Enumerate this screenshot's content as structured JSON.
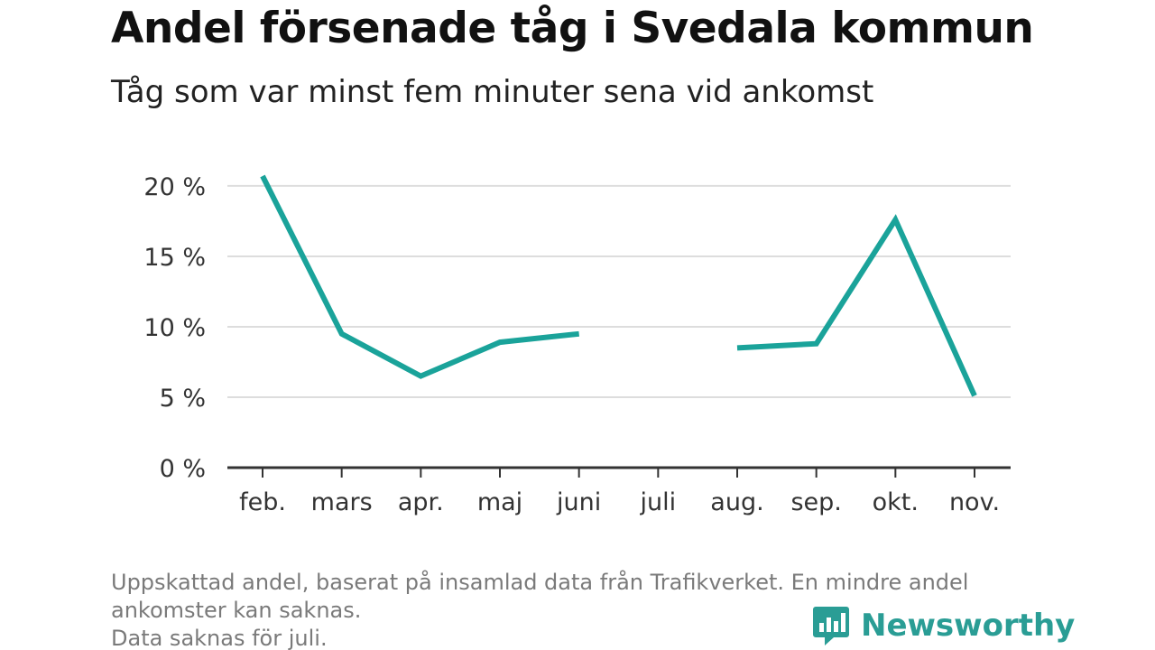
{
  "header": {
    "title": "Andel försenade tåg i Svedala kommun",
    "subtitle": "Tåg som var minst fem minuter sena vid ankomst"
  },
  "chart_data": {
    "type": "line",
    "categories": [
      "feb.",
      "mars",
      "apr.",
      "maj",
      "juni",
      "juli",
      "aug.",
      "sep.",
      "okt.",
      "nov."
    ],
    "series": [
      {
        "values": [
          20.7,
          9.5,
          6.5,
          8.9,
          9.5,
          null,
          8.5,
          8.8,
          17.6,
          5.1
        ]
      }
    ],
    "y_ticks": [
      {
        "value": 0,
        "label": "0 %"
      },
      {
        "value": 5,
        "label": "5 %"
      },
      {
        "value": 10,
        "label": "10 %"
      },
      {
        "value": 15,
        "label": "15 %"
      },
      {
        "value": 20,
        "label": "20 %"
      }
    ],
    "ylim": [
      0,
      20.7
    ],
    "grid": "horizontal",
    "line_color": "#1aa39a",
    "grid_color": "#dddddd",
    "axis_color": "#333333"
  },
  "footnote": {
    "line1": "Uppskattad andel, baserat på insamlad data från Trafikverket. En mindre andel",
    "line2": "ankomster kan saknas.",
    "line3": "Data saknas för juli."
  },
  "brand": {
    "name": "Newsworthy",
    "icon": "bar-chart-speech-bubble-icon",
    "color": "#2a9d95"
  }
}
